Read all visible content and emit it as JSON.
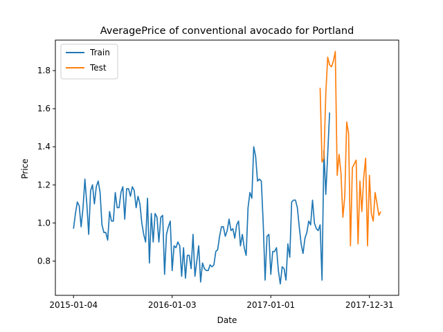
{
  "chart_data": {
    "type": "line",
    "title": "AveragePrice of conventional avocado for Portland",
    "xlabel": "Date",
    "ylabel": "Price",
    "xlim": [
      "2014-10-29",
      "2018-04-18"
    ],
    "ylim": [
      0.62,
      1.96
    ],
    "xticks": [
      "2015-01-04",
      "2016-01-03",
      "2017-01-01",
      "2017-12-31"
    ],
    "yticks": [
      0.8,
      1.0,
      1.2,
      1.4,
      1.6,
      1.8
    ],
    "ytick_labels": [
      "0.8",
      "1.0",
      "1.2",
      "1.4",
      "1.6",
      "1.8"
    ],
    "legend_position": "top-left",
    "grid": false,
    "series": [
      {
        "name": "Train",
        "color": "#1f77b4",
        "start": "2015-01-04",
        "step_days": 7,
        "values": [
          0.97,
          1.05,
          1.11,
          1.09,
          0.98,
          1.08,
          1.23,
          1.1,
          0.94,
          1.17,
          1.2,
          1.1,
          1.19,
          1.22,
          1.16,
          0.99,
          0.95,
          0.95,
          0.91,
          1.06,
          1.01,
          1.01,
          1.16,
          1.08,
          1.08,
          1.16,
          1.19,
          1.02,
          1.18,
          1.18,
          1.14,
          1.19,
          1.17,
          1.08,
          1.14,
          1.1,
          1.0,
          0.94,
          0.9,
          1.13,
          0.79,
          1.05,
          0.9,
          1.05,
          1.03,
          0.9,
          1.03,
          1.04,
          0.73,
          0.94,
          0.98,
          1.01,
          0.75,
          0.88,
          0.87,
          0.9,
          0.88,
          0.72,
          0.87,
          0.71,
          0.83,
          0.83,
          0.76,
          0.94,
          0.72,
          0.8,
          0.88,
          0.69,
          0.79,
          0.76,
          0.75,
          0.75,
          0.78,
          0.77,
          0.78,
          0.85,
          0.86,
          0.93,
          0.98,
          0.98,
          0.93,
          0.96,
          1.02,
          0.96,
          0.97,
          0.92,
          0.99,
          1.01,
          0.88,
          0.94,
          0.87,
          0.83,
          1.08,
          1.16,
          1.13,
          1.4,
          1.35,
          1.22,
          1.23,
          1.22,
          1.0,
          0.7,
          0.93,
          0.94,
          0.73,
          0.85,
          0.85,
          0.87,
          0.75,
          0.68,
          0.77,
          0.76,
          0.7,
          0.89,
          0.82,
          1.11,
          1.12,
          1.12,
          1.08,
          0.98,
          0.89,
          0.84,
          0.92,
          0.95,
          1.01,
          0.99,
          1.12,
          1.0,
          0.97,
          0.96,
          0.99,
          0.7,
          1.38,
          1.15,
          1.36,
          1.58
        ]
      },
      {
        "name": "Test",
        "color": "#ff7f0e",
        "start": "2017-07-02",
        "step_days": 7,
        "values": [
          1.71,
          1.32,
          1.34,
          1.68,
          1.87,
          1.83,
          1.82,
          1.85,
          1.9,
          1.25,
          1.36,
          1.26,
          1.03,
          1.14,
          1.53,
          1.47,
          0.88,
          1.29,
          1.31,
          1.33,
          0.89,
          1.22,
          1.06,
          1.24,
          1.34,
          0.88,
          1.25,
          1.05,
          1.01,
          1.16,
          1.1,
          1.04,
          1.06
        ]
      }
    ]
  }
}
